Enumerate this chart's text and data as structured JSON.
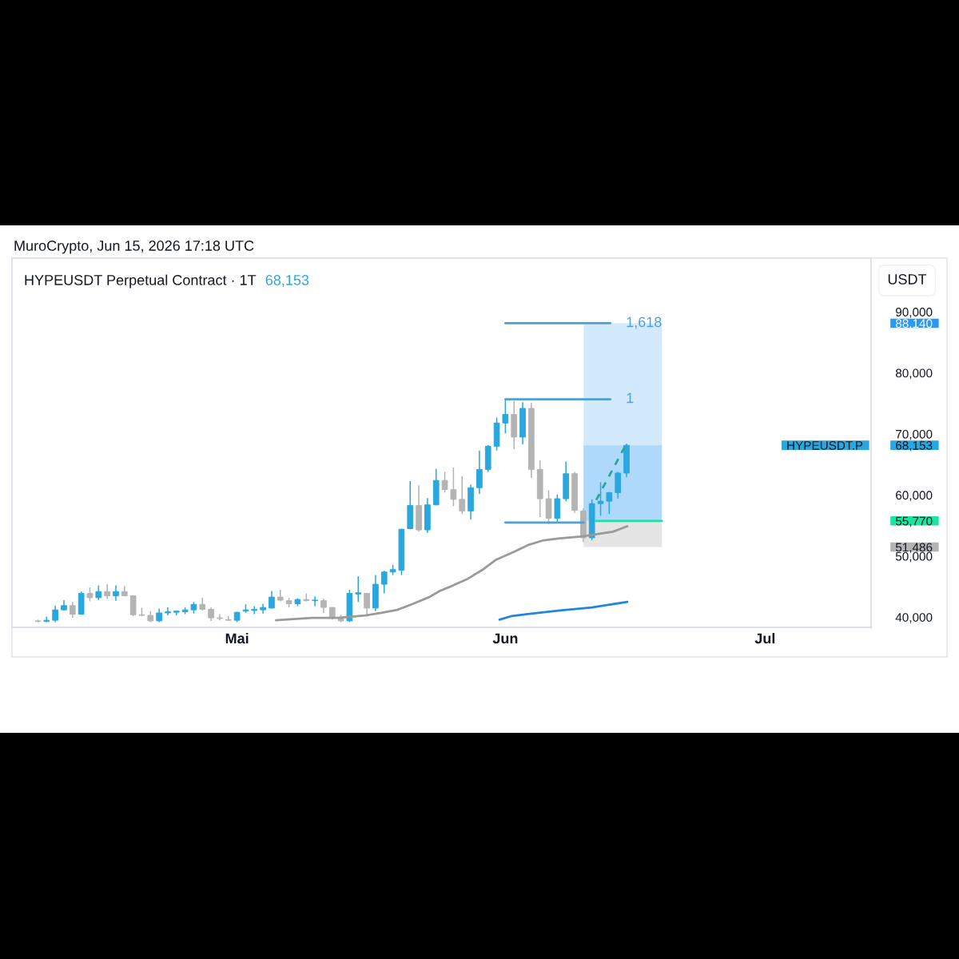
{
  "chart_data": {
    "type": "candlestick",
    "title": "HYPEUSDT Perpetual Contract · 1T",
    "subtitle": "68,153",
    "ylabel": "USDT",
    "annotations": [
      "MuroCrypto, Jun 15, 2026 17:18 UTC"
    ],
    "xlim": [
      "2026-04-05",
      "2026-07-13T06:00"
    ],
    "xticks": [
      {
        "value": "2026-05-01",
        "label": "Mai"
      },
      {
        "value": "2026-06-01",
        "label": "Jun"
      },
      {
        "value": "2026-07-01",
        "label": "Jul"
      }
    ],
    "ylim": [
      38340,
      98800
    ],
    "yticks": [
      {
        "value": 40000,
        "label": "40,000"
      },
      {
        "value": 50000,
        "label": "50,000"
      },
      {
        "value": 51486,
        "label": "51,486"
      },
      {
        "value": 55770,
        "label": "55,770"
      },
      {
        "value": 60000,
        "label": "60,000"
      },
      {
        "value": 70000,
        "label": "70,000"
      },
      {
        "value": 80000,
        "label": "80,000"
      },
      {
        "value": 88140,
        "label": "88,140"
      },
      {
        "value": 90000,
        "label": "90,000"
      }
    ],
    "series": [
      {
        "name": "HYPEUSDT.P",
        "x": [
          "2026-04-08",
          "2026-04-09",
          "2026-04-10",
          "2026-04-11",
          "2026-04-12",
          "2026-04-13",
          "2026-04-14",
          "2026-04-15",
          "2026-04-16",
          "2026-04-17",
          "2026-04-18",
          "2026-04-19",
          "2026-04-20",
          "2026-04-21",
          "2026-04-22",
          "2026-04-23",
          "2026-04-24",
          "2026-04-25",
          "2026-04-26",
          "2026-04-27",
          "2026-04-28",
          "2026-04-29",
          "2026-04-30",
          "2026-05-01",
          "2026-05-02",
          "2026-05-03",
          "2026-05-04",
          "2026-05-05",
          "2026-05-06",
          "2026-05-07",
          "2026-05-08",
          "2026-05-09",
          "2026-05-10",
          "2026-05-11",
          "2026-05-12",
          "2026-05-13",
          "2026-05-14",
          "2026-05-15",
          "2026-05-16",
          "2026-05-17",
          "2026-05-18",
          "2026-05-19",
          "2026-05-20",
          "2026-05-21",
          "2026-05-22",
          "2026-05-23",
          "2026-05-24",
          "2026-05-25",
          "2026-05-26",
          "2026-05-27",
          "2026-05-28",
          "2026-05-29",
          "2026-05-30",
          "2026-05-31",
          "2026-06-01",
          "2026-06-02",
          "2026-06-03",
          "2026-06-04",
          "2026-06-05",
          "2026-06-06",
          "2026-06-07",
          "2026-06-08",
          "2026-06-09",
          "2026-06-10",
          "2026-06-11",
          "2026-06-12",
          "2026-06-13",
          "2026-06-14",
          "2026-06-15"
        ],
        "ohlc": [
          [
            39400,
            39600,
            39200,
            39300
          ],
          [
            39300,
            40100,
            39200,
            39500
          ],
          [
            39500,
            41900,
            39200,
            41200
          ],
          [
            41200,
            42800,
            41100,
            41900
          ],
          [
            41900,
            42500,
            39900,
            40500
          ],
          [
            40500,
            44200,
            40500,
            43900
          ],
          [
            43900,
            44900,
            42600,
            43200
          ],
          [
            43200,
            45200,
            42800,
            44200
          ],
          [
            44200,
            45400,
            43000,
            43500
          ],
          [
            43500,
            45200,
            42700,
            44200
          ],
          [
            44200,
            45100,
            43400,
            43500
          ],
          [
            43500,
            43600,
            40200,
            40400
          ],
          [
            40400,
            41500,
            40200,
            40300
          ],
          [
            40300,
            41000,
            39200,
            39400
          ],
          [
            39400,
            41400,
            39200,
            40700
          ],
          [
            40700,
            41600,
            40300,
            40900
          ],
          [
            40800,
            41100,
            40300,
            41000
          ],
          [
            40900,
            41600,
            40500,
            41200
          ],
          [
            41200,
            42500,
            40600,
            42100
          ],
          [
            42100,
            43200,
            41100,
            41300
          ],
          [
            41300,
            41600,
            39400,
            39900
          ],
          [
            39900,
            40500,
            39500,
            39800
          ],
          [
            39600,
            40200,
            39400,
            39500
          ],
          [
            39500,
            40900,
            39200,
            40800
          ],
          [
            41000,
            42100,
            40700,
            41200
          ],
          [
            41100,
            41800,
            40500,
            41300
          ],
          [
            41200,
            42200,
            40600,
            41600
          ],
          [
            41500,
            44300,
            41400,
            43300
          ],
          [
            43300,
            44500,
            42600,
            42800
          ],
          [
            42700,
            43200,
            41600,
            42200
          ],
          [
            42200,
            43100,
            41800,
            42900
          ],
          [
            42900,
            43900,
            42600,
            42700
          ],
          [
            42700,
            43400,
            41800,
            42800
          ],
          [
            42700,
            43100,
            40700,
            41600
          ],
          [
            41600,
            41600,
            39600,
            39900
          ],
          [
            40000,
            40400,
            39200,
            39400
          ],
          [
            39400,
            44500,
            39200,
            43900
          ],
          [
            43800,
            46700,
            42500,
            44000
          ],
          [
            43900,
            43900,
            40100,
            41500
          ],
          [
            41500,
            46900,
            41000,
            45400
          ],
          [
            45400,
            47600,
            43900,
            47400
          ],
          [
            47400,
            48600,
            46900,
            47800
          ],
          [
            47700,
            54500,
            46900,
            54400
          ],
          [
            54500,
            62300,
            54400,
            58300
          ],
          [
            58300,
            61600,
            54000,
            54300
          ],
          [
            54300,
            59500,
            53800,
            58400
          ],
          [
            58400,
            64300,
            58300,
            62400
          ],
          [
            62400,
            63800,
            60400,
            60900
          ],
          [
            60900,
            64500,
            58200,
            59300
          ],
          [
            59300,
            63100,
            56900,
            57400
          ],
          [
            57400,
            61700,
            56000,
            61200
          ],
          [
            61200,
            67300,
            60200,
            64200
          ],
          [
            64200,
            68200,
            63800,
            68000
          ],
          [
            68000,
            72700,
            67300,
            71800
          ],
          [
            71800,
            75500,
            70100,
            73200
          ],
          [
            73200,
            75400,
            67500,
            69500
          ],
          [
            69500,
            75200,
            68300,
            74200
          ],
          [
            74200,
            75100,
            62800,
            64200
          ],
          [
            64200,
            65700,
            56400,
            59400
          ],
          [
            59400,
            60800,
            55200,
            56200
          ],
          [
            56200,
            60100,
            55600,
            59400
          ],
          [
            59400,
            65500,
            59000,
            63500
          ],
          [
            63500,
            63800,
            57100,
            57500
          ],
          [
            57400,
            57800,
            52300,
            53000
          ],
          [
            53000,
            59300,
            52600,
            58600
          ],
          [
            58600,
            62100,
            56600,
            59000
          ],
          [
            59000,
            60500,
            56900,
            60400
          ],
          [
            60400,
            63800,
            59400,
            63600
          ],
          [
            63600,
            68400,
            62900,
            68153
          ]
        ],
        "colors": [
          "#b4b4b4",
          "#2aa7df",
          "#2aa7df",
          "#2aa7df",
          "#b4b4b4",
          "#2aa7df",
          "#b4b4b4",
          "#2aa7df",
          "#b4b4b4",
          "#2aa7df",
          "#b4b4b4",
          "#b4b4b4",
          "#b4b4b4",
          "#b4b4b4",
          "#2aa7df",
          "#2aa7df",
          "#2aa7df",
          "#2aa7df",
          "#2aa7df",
          "#b4b4b4",
          "#b4b4b4",
          "#b4b4b4",
          "#b4b4b4",
          "#2aa7df",
          "#2aa7df",
          "#2aa7df",
          "#2aa7df",
          "#2aa7df",
          "#b4b4b4",
          "#b4b4b4",
          "#2aa7df",
          "#b4b4b4",
          "#2aa7df",
          "#b4b4b4",
          "#b4b4b4",
          "#b4b4b4",
          "#2aa7df",
          "#2aa7df",
          "#b4b4b4",
          "#2aa7df",
          "#2aa7df",
          "#2aa7df",
          "#2aa7df",
          "#2aa7df",
          "#b4b4b4",
          "#2aa7df",
          "#2aa7df",
          "#b4b4b4",
          "#b4b4b4",
          "#b4b4b4",
          "#2aa7df",
          "#2aa7df",
          "#2aa7df",
          "#2aa7df",
          "#2aa7df",
          "#b4b4b4",
          "#2aa7df",
          "#b4b4b4",
          "#b4b4b4",
          "#b4b4b4",
          "#2aa7df",
          "#2aa7df",
          "#b4b4b4",
          "#b4b4b4",
          "#2aa7df",
          "#2aa7df",
          "#2aa7df",
          "#2aa7df",
          "#2aa7df"
        ],
        "value_labels": [
          null,
          null,
          null,
          null,
          null,
          null,
          null,
          null,
          null,
          null,
          null,
          null,
          null,
          null,
          null,
          null,
          null,
          null,
          null,
          null,
          null,
          null,
          null,
          null,
          null,
          null,
          null,
          null,
          null,
          null,
          null,
          null,
          null,
          null,
          null,
          null,
          null,
          null,
          null,
          null,
          null,
          null,
          null,
          null,
          null,
          null,
          null,
          null,
          null,
          null,
          null,
          null,
          null,
          null,
          null,
          null,
          null,
          null,
          null,
          null,
          null,
          null,
          null,
          null,
          null,
          null,
          null,
          null,
          "68,153"
        ]
      },
      {
        "type": "line",
        "color": "#9a9a9a",
        "x": [
          "2026-05-05T12:00",
          "2026-05-09T16:00",
          "2026-05-12T17:00",
          "2026-05-15T19:00",
          "2026-05-17T16:00",
          "2026-05-19T12:00",
          "2026-05-21T08:00",
          "2026-05-23T05:00",
          "2026-05-24T10:00",
          "2026-05-25T19:00",
          "2026-05-27T16:00",
          "2026-05-29T12:00",
          "2026-05-30T22:00",
          "2026-06-02T00:00",
          "2026-06-03T14:00",
          "2026-06-05T10:00",
          "2026-06-07T07:00",
          "2026-06-09T18:00",
          "2026-06-11T14:00",
          "2026-06-13T10:00",
          "2026-06-15T02:00"
        ],
        "values": [
          39500,
          39900,
          39900,
          40300,
          40700,
          41200,
          42200,
          43300,
          44300,
          45100,
          46300,
          47900,
          49400,
          50700,
          51800,
          52600,
          52900,
          53200,
          53600,
          54000,
          54900
        ]
      },
      {
        "type": "line",
        "color": "#1f86e0",
        "x": [
          "2026-05-31T08:00",
          "2026-06-01T18:00",
          "2026-06-03T14:00",
          "2026-06-07T07:00",
          "2026-06-11T00:00",
          "2026-06-15T02:00"
        ],
        "values": [
          39600,
          40200,
          40500,
          41100,
          41600,
          42500
        ]
      },
      {
        "type": "line",
        "name": "1,618",
        "color": "#4f9fd9",
        "x": [
          "2026-06-01",
          "2026-06-13T03:00"
        ],
        "values": [
          88140,
          88140
        ]
      },
      {
        "type": "line",
        "name": "1",
        "color": "#4f9fd9",
        "x": [
          "2026-06-01",
          "2026-06-13T03:00"
        ],
        "values": [
          75700,
          75700
        ]
      },
      {
        "type": "line",
        "color": "#4f9fd9",
        "x": [
          "2026-06-01",
          "2026-06-10T01:00"
        ],
        "values": [
          55500,
          55500
        ]
      },
      {
        "type": "area",
        "color": "#d3eafd",
        "x": [
          "2026-06-10T01:00",
          "2026-06-10T01:00",
          "2026-06-19T02:00",
          "2026-06-19T02:00"
        ],
        "values": [
          55770,
          88140,
          88140,
          55770
        ]
      },
      {
        "type": "area",
        "color": "#afd9fb",
        "x": [
          "2026-06-10T01:00",
          "2026-06-10T01:00",
          "2026-06-19T02:00",
          "2026-06-19T02:00"
        ],
        "values": [
          55770,
          68153,
          68153,
          55770
        ]
      },
      {
        "type": "area",
        "color": "#e5e5e5",
        "x": [
          "2026-06-10T01:00",
          "2026-06-10T01:00",
          "2026-06-19T02:00",
          "2026-06-19T02:00"
        ],
        "values": [
          55770,
          51486,
          51486,
          55770
        ]
      },
      {
        "type": "line",
        "color": "#20e3a2",
        "x": [
          "2026-06-11T10:00",
          "2026-06-19T02:00"
        ],
        "values": [
          55770,
          55770
        ]
      },
      {
        "type": "line",
        "color": "#2aa897",
        "line_style": "dashed",
        "x": [
          "2026-06-11T12:00",
          "2026-06-14T20:00"
        ],
        "values": [
          59200,
          68000
        ]
      }
    ]
  }
}
